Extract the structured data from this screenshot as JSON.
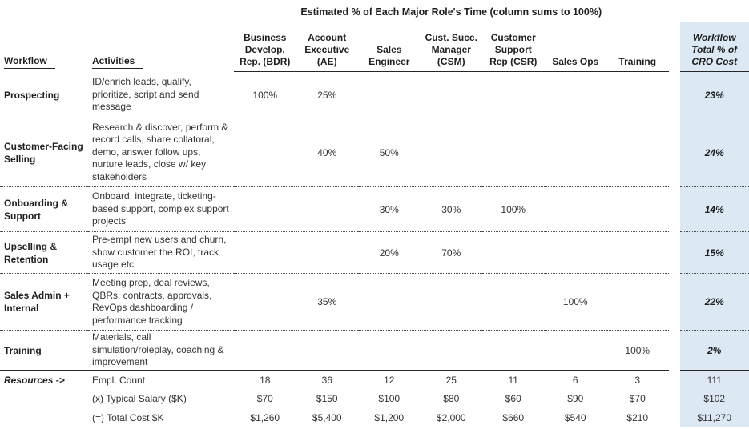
{
  "title": "Estimated % of Each Major Role's Time (column sums to 100%)",
  "columns": {
    "workflow_header": "Workflow",
    "activities_header": "Activities",
    "roles": [
      "Business\nDevelop.\nRep. (BDR)",
      "Account\nExecutive\n(AE)",
      "Sales\nEngineer",
      "Cust. Succ.\nManager\n(CSM)",
      "Customer\nSupport\nRep (CSR)",
      "Sales Ops",
      "Training"
    ],
    "total_header": "Workflow\nTotal % of\nCRO Cost"
  },
  "workflows": [
    {
      "workflow": "Prospecting",
      "activities": "ID/enrich leads, qualify, prioritize, script and send message",
      "values": [
        "100%",
        "25%",
        "",
        "",
        "",
        "",
        ""
      ],
      "total": "23%"
    },
    {
      "workflow": "Customer-Facing Selling",
      "activities": "Research & discover, perform & record calls, share collatoral, demo, answer follow ups, nurture leads, close w/ key stakeholders",
      "values": [
        "",
        "40%",
        "50%",
        "",
        "",
        "",
        ""
      ],
      "total": "24%"
    },
    {
      "workflow": "Onboarding & Support",
      "activities": "Onboard, integrate, ticketing-based support, complex support projects",
      "values": [
        "",
        "",
        "30%",
        "30%",
        "100%",
        "",
        ""
      ],
      "total": "14%"
    },
    {
      "workflow": "Upselling & Retention",
      "activities": "Pre-empt new users and churn, show customer the ROI, track usage etc",
      "values": [
        "",
        "",
        "20%",
        "70%",
        "",
        "",
        ""
      ],
      "total": "15%"
    },
    {
      "workflow": "Sales Admin + Internal",
      "activities": "Meeting prep, deal reviews, QBRs, contracts, approvals, RevOps dashboarding / performance tracking",
      "values": [
        "",
        "35%",
        "",
        "",
        "",
        "100%",
        ""
      ],
      "total": "22%"
    },
    {
      "workflow": "Training",
      "activities": "Materials, call simulation/roleplay, coaching & improvement",
      "values": [
        "",
        "",
        "",
        "",
        "",
        "",
        "100%"
      ],
      "total": "2%"
    }
  ],
  "resources": {
    "label": "Resources ->",
    "rows": [
      {
        "metric": "Empl. Count",
        "values": [
          "18",
          "36",
          "12",
          "25",
          "11",
          "6",
          "3"
        ],
        "total": "111"
      },
      {
        "metric": "(x) Typical Salary ($K)",
        "values": [
          "$70",
          "$150",
          "$100",
          "$80",
          "$60",
          "$90",
          "$70"
        ],
        "total": "$102"
      },
      {
        "metric": "(=) Total Cost $K",
        "values": [
          "$1,260",
          "$5,400",
          "$1,200",
          "$2,000",
          "$660",
          "$540",
          "$210"
        ],
        "total": "$11,270"
      }
    ]
  },
  "colors": {
    "total_column_bg": "#dce8f3",
    "line": "#262626"
  }
}
